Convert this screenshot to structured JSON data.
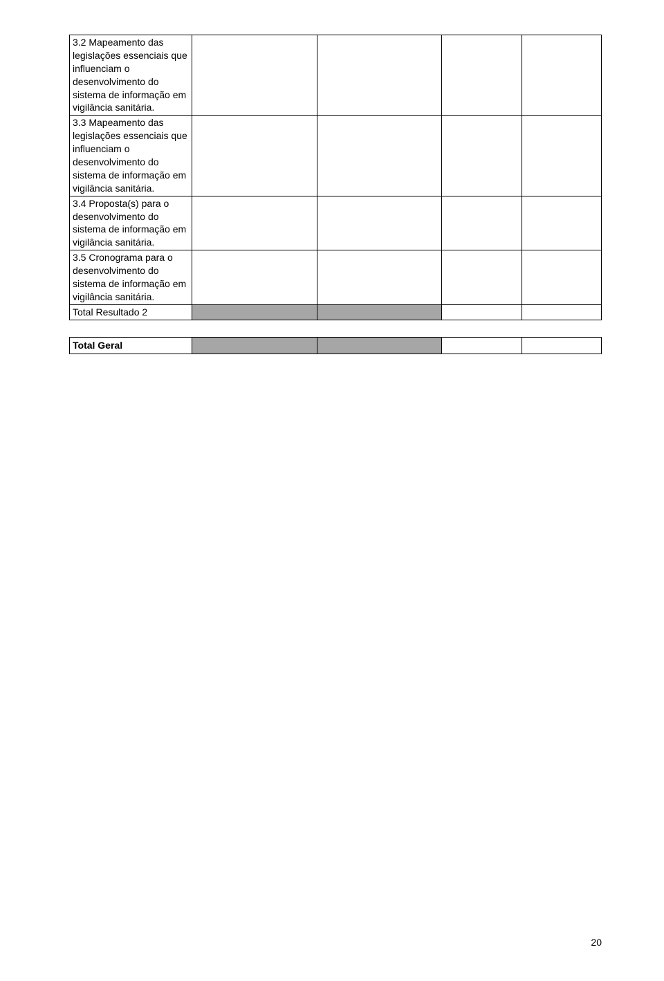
{
  "main_table": {
    "rows": [
      {
        "text": "3.2 Mapeamento das legislações essenciais que influenciam o desenvolvimento do sistema de informação em vigilância sanitária.",
        "shaded": false
      },
      {
        "text": "3.3 Mapeamento das legislações essenciais que influenciam o desenvolvimento do sistema de informação em vigilância sanitária.",
        "shaded": false
      },
      {
        "text": "3.4 Proposta(s) para o desenvolvimento do sistema de informação em vigilância sanitária.",
        "shaded": false
      },
      {
        "text": "3.5 Cronograma para o desenvolvimento do sistema de informação em vigilância sanitária.",
        "shaded": false
      },
      {
        "text": "Total Resultado 2",
        "shaded": true
      }
    ]
  },
  "total_table": {
    "label": "Total Geral"
  },
  "colors": {
    "shaded": "#a6a6a6",
    "border": "#000000",
    "background": "#ffffff",
    "text": "#000000"
  },
  "page_number": "20"
}
